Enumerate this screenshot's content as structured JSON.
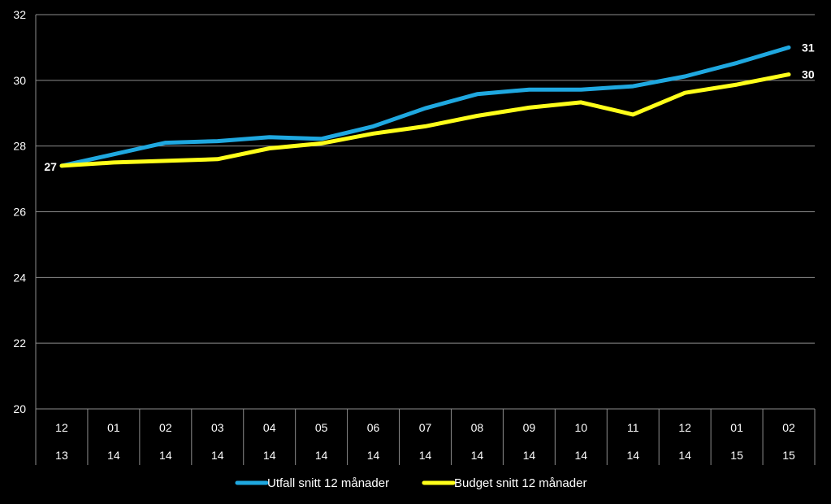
{
  "chart_data": {
    "type": "line",
    "title": "",
    "xlabel": "",
    "ylabel": "",
    "ylim": [
      20,
      32
    ],
    "yticks": [
      20,
      22,
      24,
      26,
      28,
      30,
      32
    ],
    "grid": true,
    "legend_position": "bottom",
    "categories": [
      [
        "12",
        "13"
      ],
      [
        "01",
        "14"
      ],
      [
        "02",
        "14"
      ],
      [
        "03",
        "14"
      ],
      [
        "04",
        "14"
      ],
      [
        "05",
        "14"
      ],
      [
        "06",
        "14"
      ],
      [
        "07",
        "14"
      ],
      [
        "08",
        "14"
      ],
      [
        "09",
        "14"
      ],
      [
        "10",
        "14"
      ],
      [
        "11",
        "14"
      ],
      [
        "12",
        "14"
      ],
      [
        "01",
        "15"
      ],
      [
        "02",
        "15"
      ]
    ],
    "series": [
      {
        "name": "Utfall snitt 12 månader",
        "color": "#1FA8E0",
        "values": [
          27.4,
          27.75,
          28.1,
          28.15,
          28.27,
          28.22,
          28.6,
          29.15,
          29.58,
          29.72,
          29.72,
          29.82,
          30.12,
          30.53,
          31.0
        ],
        "end_label": "31"
      },
      {
        "name": "Budget snitt 12 månader",
        "color": "#FFFF1A",
        "values": [
          27.4,
          27.5,
          27.55,
          27.6,
          27.93,
          28.08,
          28.38,
          28.6,
          28.92,
          29.17,
          29.33,
          28.96,
          29.62,
          29.87,
          30.18
        ],
        "start_label": "27",
        "end_label": "30"
      }
    ]
  }
}
